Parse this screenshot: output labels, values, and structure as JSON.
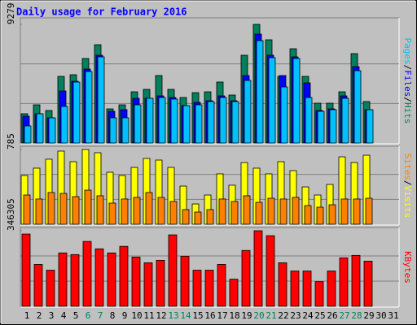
{
  "chart_data": [
    {
      "type": "bar",
      "title": "Daily usage for February 2016",
      "ylim": [
        0,
        9279
      ],
      "yticks": [
        9279
      ],
      "grid_divisions": 3,
      "legend_separator": "/",
      "series": [
        {
          "name": "Hits",
          "color": "#00805c",
          "values": [
            2288,
            2987,
            2542,
            5211,
            5339,
            6610,
            7690,
            2669,
            2987,
            4004,
            4195,
            5275,
            4195,
            3559,
            3940,
            4004,
            4767,
            3750,
            6864,
            9279,
            8072,
            5211,
            7372,
            5211,
            3114,
            3114,
            4004,
            6991,
            3241,
            null,
            null
          ]
        },
        {
          "name": "Files",
          "color": "#0000ff",
          "values": [
            2097,
            2288,
            1970,
            4068,
            4830,
            5783,
            6864,
            2479,
            2606,
            3496,
            3496,
            3686,
            3559,
            2923,
            3178,
            3305,
            3686,
            3305,
            5275,
            8516,
            6864,
            5275,
            6737,
            4703,
            2542,
            2669,
            3686,
            5974,
            2606,
            null,
            null
          ]
        },
        {
          "name": "Pages",
          "color": "#00c0ff",
          "values": [
            1335,
            2288,
            1970,
            2860,
            4767,
            5593,
            6737,
            1970,
            1970,
            2987,
            3496,
            3559,
            3432,
            2923,
            2987,
            3241,
            3559,
            3241,
            4894,
            8008,
            6673,
            4385,
            6610,
            3559,
            2479,
            2606,
            3496,
            5656,
            2606,
            null,
            null
          ]
        }
      ]
    },
    {
      "type": "bar",
      "ylim": [
        0,
        785
      ],
      "yticks": [
        785
      ],
      "grid_divisions": 3,
      "legend_separator": "/",
      "series": [
        {
          "name": "Visits",
          "color": "#ffff00",
          "values": [
            512,
            589,
            683,
            768,
            657,
            785,
            751,
            546,
            512,
            597,
            691,
            674,
            597,
            401,
            213,
            307,
            529,
            410,
            648,
            589,
            529,
            657,
            563,
            392,
            307,
            418,
            708,
            648,
            725,
            null,
            null
          ]
        },
        {
          "name": "Sites",
          "color": "#ff8000",
          "values": [
            307,
            265,
            333,
            324,
            290,
            358,
            299,
            222,
            265,
            282,
            333,
            282,
            239,
            154,
            128,
            154,
            265,
            239,
            299,
            230,
            273,
            265,
            282,
            196,
            179,
            205,
            265,
            265,
            273,
            null,
            null
          ]
        }
      ]
    },
    {
      "type": "bar",
      "ylim": [
        0,
        346305
      ],
      "yticks": [
        346305
      ],
      "grid_divisions": 3,
      "categories": [
        "1",
        "2",
        "3",
        "4",
        "5",
        "6",
        "7",
        "8",
        "9",
        "10",
        "11",
        "12",
        "13",
        "14",
        "15",
        "16",
        "17",
        "18",
        "19",
        "20",
        "21",
        "22",
        "23",
        "24",
        "25",
        "26",
        "27",
        "28",
        "29",
        "30",
        "31"
      ],
      "category_colors": [
        "#000000",
        "#000000",
        "#000000",
        "#000000",
        "#000000",
        "#00805c",
        "#00805c",
        "#000000",
        "#000000",
        "#000000",
        "#000000",
        "#000000",
        "#00805c",
        "#00805c",
        "#000000",
        "#000000",
        "#000000",
        "#000000",
        "#000000",
        "#00805c",
        "#00805c",
        "#000000",
        "#000000",
        "#000000",
        "#000000",
        "#000000",
        "#00805c",
        "#00805c",
        "#000000",
        "#000000",
        "#000000"
      ],
      "series": [
        {
          "name": "KBytes",
          "color": "#ff0000",
          "values": [
            331250,
            191976,
            165624,
            244672,
            237143,
            297371,
            263493,
            244672,
            274784,
            225852,
            199505,
            210794,
            327486,
            229616,
            165624,
            165624,
            191976,
            124218,
            255964,
            346305,
            323722,
            199505,
            161860,
            161860,
            112926,
            161860,
            222088,
            233382,
            207031,
            null,
            null
          ]
        }
      ]
    }
  ]
}
